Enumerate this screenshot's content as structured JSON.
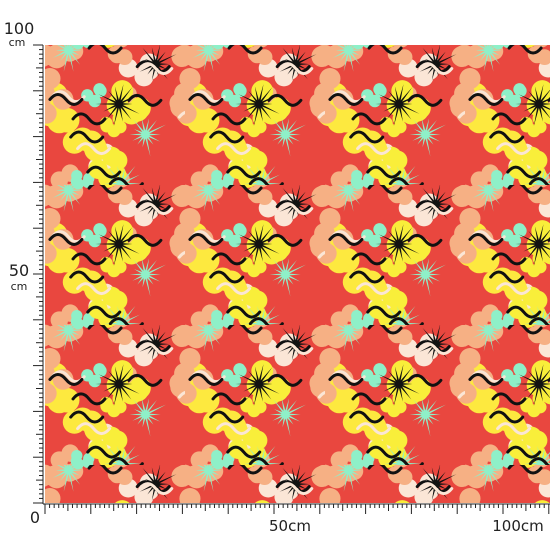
{
  "left_ruler": {
    "labels": [
      {
        "number": "100",
        "unit": "cm"
      },
      {
        "number": "50",
        "unit": "cm"
      }
    ],
    "origin": "0"
  },
  "bottom_ruler": {
    "labels": [
      "50cm",
      "100cm"
    ]
  }
}
